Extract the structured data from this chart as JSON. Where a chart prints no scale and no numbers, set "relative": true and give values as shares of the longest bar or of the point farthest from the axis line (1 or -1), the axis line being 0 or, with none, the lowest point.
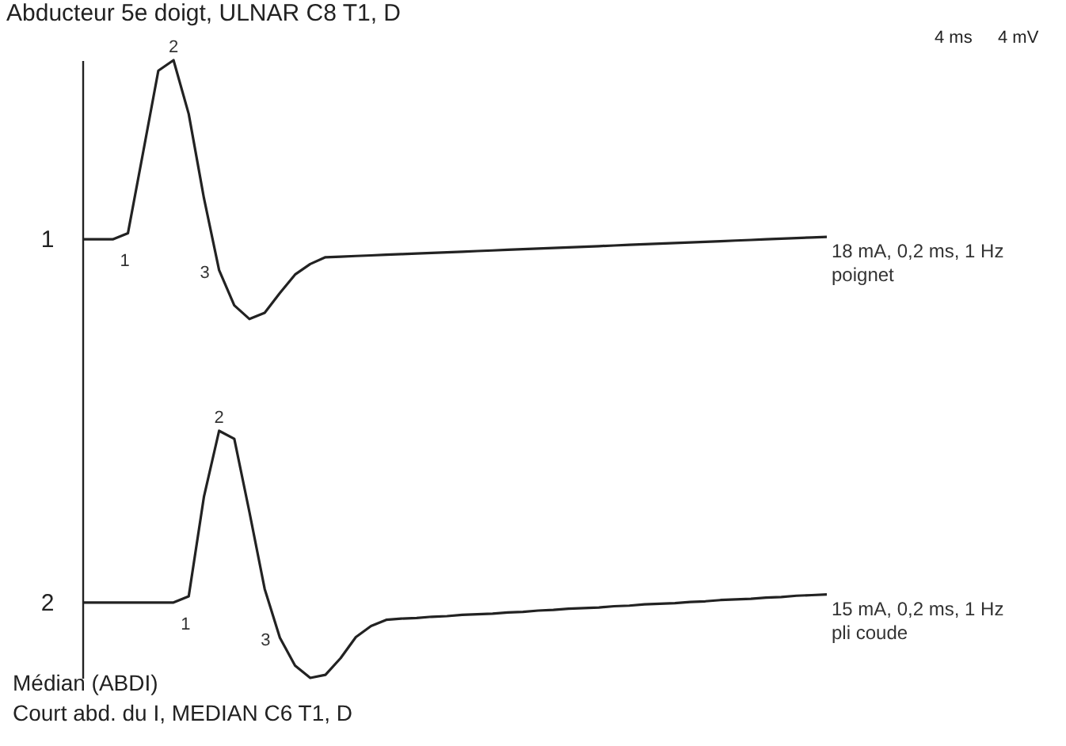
{
  "chart_data": {
    "type": "line",
    "relative": true,
    "title": "Abducteur 5e doigt, ULNAR C8 T1, D",
    "categories": [
      null,
      null,
      null,
      null,
      null,
      null,
      null,
      null,
      null,
      null,
      null,
      null,
      null,
      null,
      null,
      null,
      null,
      null,
      null,
      null,
      null,
      null,
      null,
      null,
      null,
      null,
      null,
      null,
      null,
      null,
      null,
      null,
      null,
      null,
      null,
      null,
      null,
      null,
      null,
      null,
      null,
      null,
      null,
      null,
      null,
      null,
      null,
      null,
      null,
      null
    ],
    "series": [
      {
        "name": "1",
        "color": "#222222",
        "values": [
          0.71,
          0.71,
          0.71,
          0.72,
          0.851,
          0.983,
          1.0,
          0.913,
          0.777,
          0.66,
          0.603,
          0.581,
          0.591,
          0.623,
          0.653,
          0.67,
          0.681,
          0.682,
          0.683,
          0.684,
          0.685,
          0.686,
          0.687,
          0.688,
          0.689,
          0.69,
          0.691,
          0.692,
          0.693,
          0.694,
          0.695,
          0.696,
          0.697,
          0.698,
          0.699,
          0.7,
          0.701,
          0.702,
          0.703,
          0.704,
          0.705,
          0.706,
          0.707,
          0.708,
          0.709,
          0.71,
          0.711,
          0.712,
          0.713,
          0.714
        ]
      },
      {
        "name": "2",
        "color": "#222222",
        "values": [
          0.122,
          0.122,
          0.122,
          0.122,
          0.122,
          0.122,
          0.122,
          0.132,
          0.293,
          0.4,
          0.387,
          0.268,
          0.144,
          0.065,
          0.02,
          0.0,
          0.005,
          0.032,
          0.066,
          0.084,
          0.094,
          0.096,
          0.097,
          0.099,
          0.1,
          0.102,
          0.103,
          0.104,
          0.106,
          0.107,
          0.109,
          0.11,
          0.112,
          0.113,
          0.114,
          0.116,
          0.117,
          0.119,
          0.12,
          0.121,
          0.123,
          0.124,
          0.126,
          0.127,
          0.128,
          0.13,
          0.131,
          0.133,
          0.134,
          0.135
        ]
      }
    ],
    "annotations": [
      "1",
      "2",
      "3",
      "1",
      "2",
      "3",
      "18 mA, 0,2 ms, 1 Hz",
      "poignet",
      "15 mA, 0,2 ms, 1 Hz",
      "pli coude",
      "4 ms",
      "4 mV",
      "Médian (ABDI)",
      "Court abd. du I, MEDIAN C6 T1, D"
    ]
  }
}
